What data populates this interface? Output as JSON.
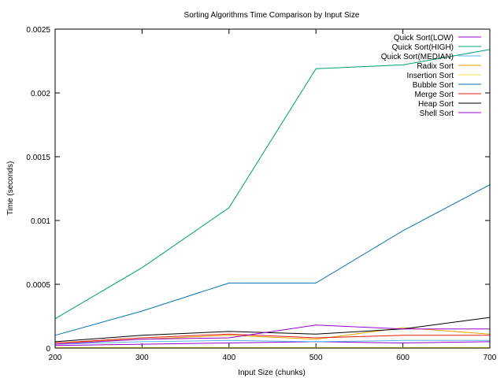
{
  "chart_data": {
    "type": "line",
    "title": "Sorting Algorithms Time Comparison by Input Size",
    "xlabel": "Input Size (chunks)",
    "ylabel": "Time (seconds)",
    "xlim": [
      200,
      700
    ],
    "ylim": [
      0,
      0.0025
    ],
    "x_ticks": [
      200,
      300,
      400,
      500,
      600,
      700
    ],
    "x_tick_labels": [
      "200",
      "300",
      "400",
      "500",
      "600",
      "700"
    ],
    "y_ticks": [
      0,
      0.0005,
      0.001,
      0.0015,
      0.002,
      0.0025
    ],
    "y_tick_labels": [
      "0",
      "0.0005",
      "0.001",
      "0.0015",
      "0.002",
      "0.0025"
    ],
    "grid": false,
    "legend_position": "top-right",
    "x": [
      200,
      300,
      400,
      500,
      600,
      700
    ],
    "series": [
      {
        "name": "Quick Sort(LOW)",
        "color": "#9400d3",
        "values": [
          2e-05,
          3e-05,
          4e-05,
          5e-05,
          4e-05,
          5e-05
        ]
      },
      {
        "name": "Quick Sort(HIGH)",
        "color": "#009e73",
        "values": [
          0.00023,
          0.00063,
          0.0011,
          0.00219,
          0.00222,
          0.00234
        ]
      },
      {
        "name": "Quick Sort(MEDIAN)",
        "color": "#56b4e9",
        "values": [
          3e-05,
          5e-05,
          6e-05,
          5e-05,
          6e-05,
          6e-05
        ]
      },
      {
        "name": "Radix Sort",
        "color": "#e69f00",
        "values": [
          4e-05,
          7e-05,
          0.0001,
          7e-05,
          0.00016,
          0.00011
        ]
      },
      {
        "name": "Insertion Sort",
        "color": "#f0e442",
        "values": [
          5e-06,
          5e-06,
          5e-06,
          5e-06,
          5e-06,
          5e-06
        ]
      },
      {
        "name": "Bubble Sort",
        "color": "#0072b2",
        "values": [
          0.0001,
          0.00029,
          0.00051,
          0.00051,
          0.00092,
          0.00128
        ]
      },
      {
        "name": "Merge Sort",
        "color": "#e51e10",
        "values": [
          4e-05,
          8e-05,
          0.00011,
          8e-05,
          0.0001,
          0.0001
        ]
      },
      {
        "name": "Heap Sort",
        "color": "#000000",
        "values": [
          5e-05,
          0.0001,
          0.00013,
          0.00011,
          0.00015,
          0.00024
        ]
      },
      {
        "name": "Shell Sort",
        "color": "#9400d3",
        "values": [
          3e-05,
          7e-05,
          8e-05,
          0.00018,
          0.00015,
          0.00015
        ]
      }
    ]
  }
}
